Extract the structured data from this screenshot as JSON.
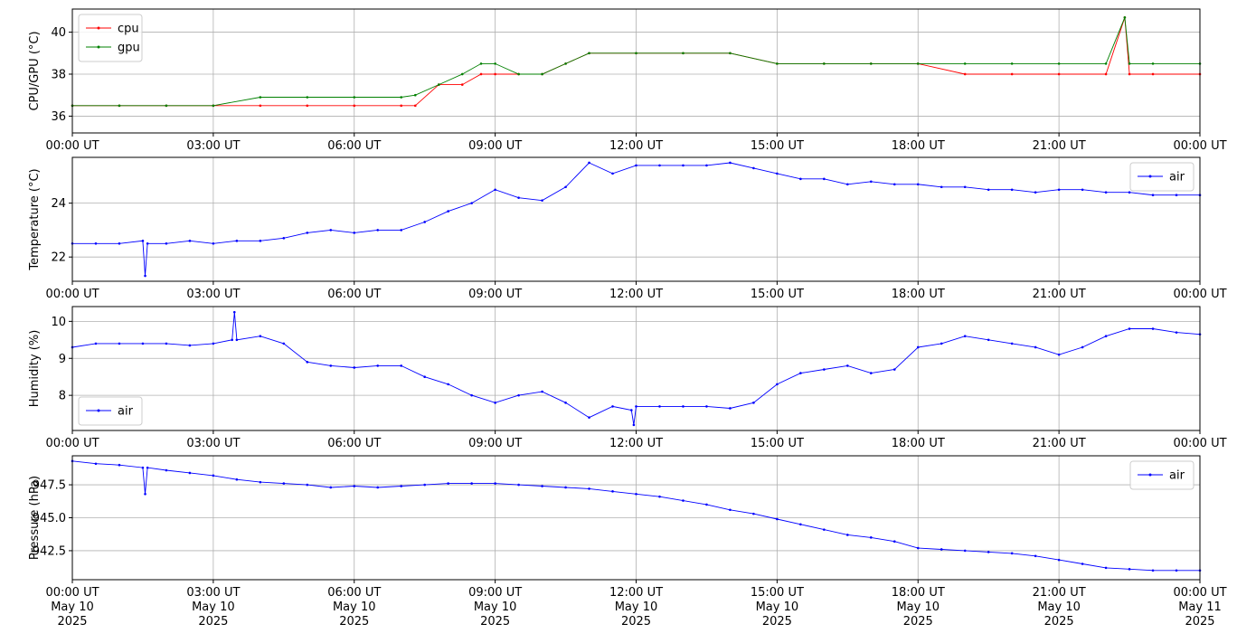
{
  "chart_data": [
    {
      "type": "line",
      "ylabel": "CPU/GPU (°C)",
      "ylim": [
        35.2,
        41.1
      ],
      "yticks": [
        36,
        38,
        40
      ],
      "ytick_labels": [
        "36",
        "38",
        "40"
      ],
      "xlim": [
        0,
        24
      ],
      "xticks": [
        0,
        3,
        6,
        9,
        12,
        15,
        18,
        21,
        24
      ],
      "xtick_labels": [
        "00:00 UT",
        "03:00 UT",
        "06:00 UT",
        "09:00 UT",
        "12:00 UT",
        "15:00 UT",
        "18:00 UT",
        "21:00 UT",
        "00:00 UT"
      ],
      "grid": true,
      "legend": "upper left",
      "series": [
        {
          "name": "cpu",
          "color": "#ff0000",
          "x": [
            0.0,
            1.0,
            2.0,
            3.0,
            4.0,
            5.0,
            6.0,
            7.0,
            7.3,
            7.8,
            8.3,
            8.7,
            9.0,
            9.5,
            10.0,
            10.5,
            11.0,
            12.0,
            13.0,
            14.0,
            15.0,
            16.0,
            17.0,
            18.0,
            19.0,
            20.0,
            21.0,
            22.0,
            22.4,
            22.5,
            23.0,
            24.0
          ],
          "y": [
            36.5,
            36.5,
            36.5,
            36.5,
            36.5,
            36.5,
            36.5,
            36.5,
            36.5,
            37.5,
            37.5,
            38.0,
            38.0,
            38.0,
            38.0,
            38.5,
            39.0,
            39.0,
            39.0,
            39.0,
            38.5,
            38.5,
            38.5,
            38.5,
            38.0,
            38.0,
            38.0,
            38.0,
            40.7,
            38.0,
            38.0,
            38.0
          ]
        },
        {
          "name": "gpu",
          "color": "#008000",
          "x": [
            0.0,
            1.0,
            2.0,
            3.0,
            4.0,
            5.0,
            6.0,
            7.0,
            7.3,
            7.8,
            8.3,
            8.7,
            9.0,
            9.5,
            10.0,
            10.5,
            11.0,
            12.0,
            13.0,
            14.0,
            15.0,
            16.0,
            17.0,
            18.0,
            19.0,
            20.0,
            21.0,
            22.0,
            22.4,
            22.5,
            23.0,
            24.0
          ],
          "y": [
            36.5,
            36.5,
            36.5,
            36.5,
            36.9,
            36.9,
            36.9,
            36.9,
            37.0,
            37.5,
            38.0,
            38.5,
            38.5,
            38.0,
            38.0,
            38.5,
            39.0,
            39.0,
            39.0,
            39.0,
            38.5,
            38.5,
            38.5,
            38.5,
            38.5,
            38.5,
            38.5,
            38.5,
            40.7,
            38.5,
            38.5,
            38.5
          ]
        }
      ]
    },
    {
      "type": "line",
      "ylabel": "Temperature (°C)",
      "ylim": [
        21.1,
        25.7
      ],
      "yticks": [
        22,
        24
      ],
      "ytick_labels": [
        "22",
        "24"
      ],
      "xlim": [
        0,
        24
      ],
      "xticks": [
        0,
        3,
        6,
        9,
        12,
        15,
        18,
        21,
        24
      ],
      "xtick_labels": [
        "00:00 UT",
        "03:00 UT",
        "06:00 UT",
        "09:00 UT",
        "12:00 UT",
        "15:00 UT",
        "18:00 UT",
        "21:00 UT",
        "00:00 UT"
      ],
      "grid": true,
      "legend": "upper right",
      "series": [
        {
          "name": "air",
          "color": "#0000ff",
          "x": [
            0.0,
            0.5,
            1.0,
            1.5,
            1.55,
            1.6,
            2.0,
            2.5,
            3.0,
            3.5,
            4.0,
            4.5,
            5.0,
            5.5,
            6.0,
            6.5,
            7.0,
            7.5,
            8.0,
            8.5,
            9.0,
            9.5,
            10.0,
            10.5,
            11.0,
            11.5,
            12.0,
            12.5,
            13.0,
            13.5,
            14.0,
            14.5,
            15.0,
            15.5,
            16.0,
            16.5,
            17.0,
            17.5,
            18.0,
            18.5,
            19.0,
            19.5,
            20.0,
            20.5,
            21.0,
            21.5,
            22.0,
            22.5,
            23.0,
            23.5,
            24.0
          ],
          "y": [
            22.5,
            22.5,
            22.5,
            22.6,
            21.3,
            22.5,
            22.5,
            22.6,
            22.5,
            22.6,
            22.6,
            22.7,
            22.9,
            23.0,
            22.9,
            23.0,
            23.0,
            23.3,
            23.7,
            24.0,
            24.5,
            24.2,
            24.1,
            24.6,
            25.5,
            25.1,
            25.4,
            25.4,
            25.4,
            25.4,
            25.5,
            25.3,
            25.1,
            24.9,
            24.9,
            24.7,
            24.8,
            24.7,
            24.7,
            24.6,
            24.6,
            24.5,
            24.5,
            24.4,
            24.5,
            24.5,
            24.4,
            24.4,
            24.3,
            24.3,
            24.3
          ]
        }
      ]
    },
    {
      "type": "line",
      "ylabel": "Humidity (%)",
      "ylim": [
        7.05,
        10.4
      ],
      "yticks": [
        8,
        9,
        10
      ],
      "ytick_labels": [
        "8",
        "9",
        "10"
      ],
      "xlim": [
        0,
        24
      ],
      "xticks": [
        0,
        3,
        6,
        9,
        12,
        15,
        18,
        21,
        24
      ],
      "xtick_labels": [
        "00:00 UT",
        "03:00 UT",
        "06:00 UT",
        "09:00 UT",
        "12:00 UT",
        "15:00 UT",
        "18:00 UT",
        "21:00 UT",
        "00:00 UT"
      ],
      "grid": true,
      "legend": "lower left",
      "series": [
        {
          "name": "air",
          "color": "#0000ff",
          "x": [
            0.0,
            0.5,
            1.0,
            1.5,
            2.0,
            2.5,
            3.0,
            3.4,
            3.45,
            3.5,
            4.0,
            4.5,
            5.0,
            5.5,
            6.0,
            6.5,
            7.0,
            7.5,
            8.0,
            8.5,
            9.0,
            9.5,
            10.0,
            10.5,
            11.0,
            11.5,
            11.9,
            11.95,
            12.0,
            12.5,
            13.0,
            13.5,
            14.0,
            14.5,
            15.0,
            15.5,
            16.0,
            16.5,
            17.0,
            17.5,
            18.0,
            18.5,
            19.0,
            19.5,
            20.0,
            20.5,
            21.0,
            21.5,
            22.0,
            22.5,
            23.0,
            23.5,
            24.0
          ],
          "y": [
            9.3,
            9.4,
            9.4,
            9.4,
            9.4,
            9.35,
            9.4,
            9.5,
            10.25,
            9.5,
            9.6,
            9.4,
            8.9,
            8.8,
            8.75,
            8.8,
            8.8,
            8.5,
            8.3,
            8.0,
            7.8,
            8.0,
            8.1,
            7.8,
            7.4,
            7.7,
            7.6,
            7.2,
            7.7,
            7.7,
            7.7,
            7.7,
            7.65,
            7.8,
            8.3,
            8.6,
            8.7,
            8.8,
            8.6,
            8.7,
            9.3,
            9.4,
            9.6,
            9.5,
            9.4,
            9.3,
            9.1,
            9.3,
            9.6,
            9.8,
            9.8,
            9.7,
            9.65
          ]
        }
      ]
    },
    {
      "type": "line",
      "ylabel": "Pressure (hPa)",
      "ylim": [
        940.3,
        949.7
      ],
      "yticks": [
        942.5,
        945.0,
        947.5
      ],
      "ytick_labels": [
        "942.5",
        "945.0",
        "947.5"
      ],
      "xlim": [
        0,
        24
      ],
      "xticks": [
        0,
        3,
        6,
        9,
        12,
        15,
        18,
        21,
        24
      ],
      "xtick_labels": [
        "00:00 UT\nMay 10\n2025",
        "03:00 UT\nMay 10\n2025",
        "06:00 UT\nMay 10\n2025",
        "09:00 UT\nMay 10\n2025",
        "12:00 UT\nMay 10\n2025",
        "15:00 UT\nMay 10\n2025",
        "18:00 UT\nMay 10\n2025",
        "21:00 UT\nMay 10\n2025",
        "00:00 UT\nMay 11\n2025"
      ],
      "grid": true,
      "legend": "upper right",
      "series": [
        {
          "name": "air",
          "color": "#0000ff",
          "x": [
            0.0,
            0.5,
            1.0,
            1.5,
            1.55,
            1.6,
            2.0,
            2.5,
            3.0,
            3.5,
            4.0,
            4.5,
            5.0,
            5.5,
            6.0,
            6.5,
            7.0,
            7.5,
            8.0,
            8.5,
            9.0,
            9.5,
            10.0,
            10.5,
            11.0,
            11.5,
            12.0,
            12.5,
            13.0,
            13.5,
            14.0,
            14.5,
            15.0,
            15.5,
            16.0,
            16.5,
            17.0,
            17.5,
            18.0,
            18.5,
            19.0,
            19.5,
            20.0,
            20.5,
            21.0,
            21.5,
            22.0,
            22.5,
            23.0,
            23.5,
            24.0
          ],
          "y": [
            949.3,
            949.1,
            949.0,
            948.8,
            946.8,
            948.8,
            948.6,
            948.4,
            948.2,
            947.9,
            947.7,
            947.6,
            947.5,
            947.3,
            947.4,
            947.3,
            947.4,
            947.5,
            947.6,
            947.6,
            947.6,
            947.5,
            947.4,
            947.3,
            947.2,
            947.0,
            946.8,
            946.6,
            946.3,
            946.0,
            945.6,
            945.3,
            944.9,
            944.5,
            944.1,
            943.7,
            943.5,
            943.2,
            942.7,
            942.6,
            942.5,
            942.4,
            942.3,
            942.1,
            941.8,
            941.5,
            941.2,
            941.1,
            941.0,
            941.0,
            941.0
          ]
        }
      ]
    }
  ]
}
